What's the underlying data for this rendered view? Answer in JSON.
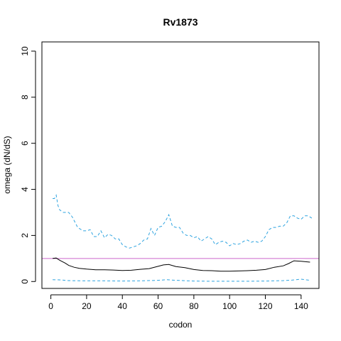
{
  "chart_data": {
    "type": "line",
    "title": "Rv1873",
    "xlabel": "codon",
    "ylabel": "omega (dN/dS)",
    "xlim": [
      -5,
      150
    ],
    "ylim": [
      -0.3,
      10.4
    ],
    "xticks": [
      0,
      20,
      40,
      60,
      80,
      100,
      120,
      140
    ],
    "yticks": [
      0,
      2,
      4,
      6,
      8,
      10
    ],
    "reference_line": {
      "y": 1,
      "color": "#cc66cc"
    },
    "colors": {
      "mean": "#000000",
      "ci": "#2fa4e0"
    },
    "series": [
      {
        "role": "upper",
        "style": "dashed",
        "x": [
          1,
          2,
          3,
          4,
          5,
          7,
          10,
          12,
          15,
          18,
          20,
          22,
          24,
          26,
          28,
          30,
          32,
          34,
          36,
          38,
          40,
          42,
          44,
          46,
          48,
          50,
          52,
          54,
          56,
          58,
          60,
          62,
          64,
          66,
          68,
          70,
          72,
          74,
          76,
          78,
          80,
          82,
          84,
          86,
          88,
          90,
          92,
          94,
          96,
          98,
          100,
          102,
          104,
          106,
          108,
          110,
          112,
          114,
          116,
          118,
          120,
          122,
          124,
          126,
          128,
          130,
          132,
          134,
          136,
          138,
          140,
          142,
          144,
          146
        ],
        "y": [
          3.6,
          3.6,
          3.75,
          3.3,
          3.1,
          3.0,
          3.0,
          2.8,
          2.35,
          2.2,
          2.2,
          2.25,
          1.95,
          1.95,
          2.2,
          1.9,
          2.05,
          2.0,
          1.85,
          1.85,
          1.6,
          1.5,
          1.45,
          1.5,
          1.55,
          1.65,
          1.8,
          1.85,
          2.3,
          2.0,
          2.35,
          2.4,
          2.6,
          2.9,
          2.4,
          2.35,
          2.35,
          2.1,
          2.0,
          2.0,
          1.9,
          1.95,
          1.75,
          1.85,
          1.95,
          1.85,
          1.6,
          1.7,
          1.75,
          1.7,
          1.55,
          1.65,
          1.6,
          1.65,
          1.75,
          1.8,
          1.7,
          1.75,
          1.7,
          1.75,
          1.95,
          2.25,
          2.35,
          2.35,
          2.4,
          2.4,
          2.55,
          2.85,
          2.85,
          2.75,
          2.7,
          2.85,
          2.85,
          2.75
        ]
      },
      {
        "role": "mean",
        "style": "solid",
        "x": [
          1,
          3,
          5,
          8,
          10,
          13,
          16,
          20,
          25,
          30,
          35,
          40,
          45,
          50,
          55,
          60,
          63,
          66,
          70,
          75,
          80,
          85,
          90,
          95,
          100,
          105,
          110,
          115,
          120,
          125,
          130,
          133,
          136,
          140,
          145
        ],
        "y": [
          1.0,
          1.02,
          0.92,
          0.8,
          0.7,
          0.62,
          0.57,
          0.54,
          0.51,
          0.51,
          0.5,
          0.48,
          0.49,
          0.53,
          0.56,
          0.66,
          0.72,
          0.74,
          0.65,
          0.6,
          0.52,
          0.48,
          0.47,
          0.45,
          0.45,
          0.46,
          0.47,
          0.49,
          0.52,
          0.62,
          0.68,
          0.78,
          0.9,
          0.88,
          0.84
        ]
      },
      {
        "role": "lower",
        "style": "dashed",
        "x": [
          1,
          5,
          10,
          20,
          30,
          40,
          50,
          60,
          65,
          70,
          80,
          90,
          100,
          110,
          120,
          130,
          135,
          140,
          145
        ],
        "y": [
          0.08,
          0.07,
          0.04,
          0.03,
          0.03,
          0.02,
          0.03,
          0.05,
          0.08,
          0.05,
          0.02,
          0.01,
          0.01,
          0.01,
          0.02,
          0.04,
          0.06,
          0.1,
          0.05
        ]
      }
    ]
  }
}
